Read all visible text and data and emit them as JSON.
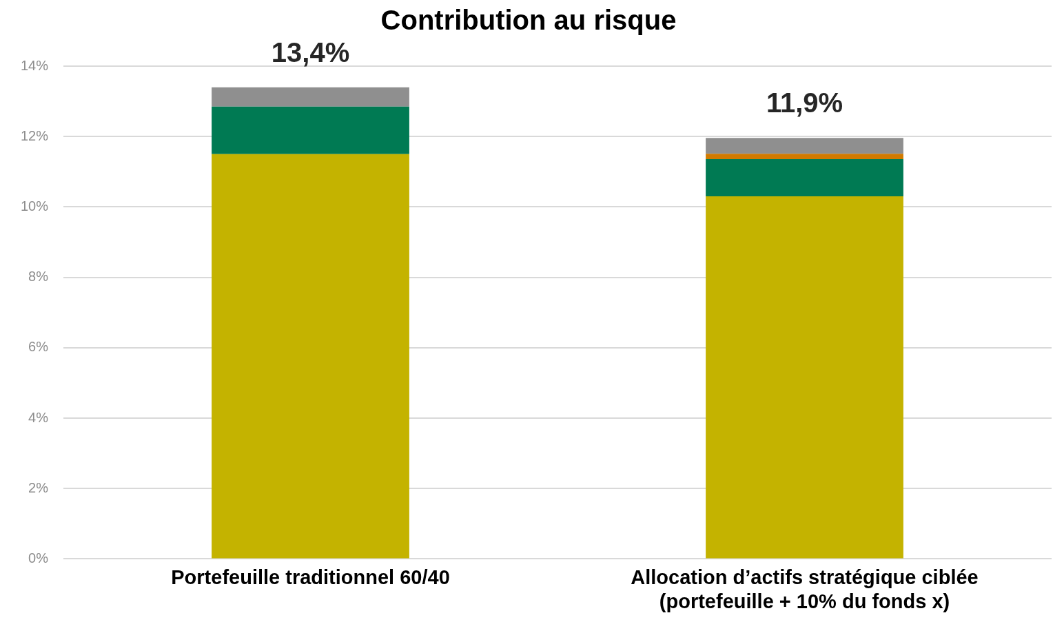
{
  "chart_data": {
    "type": "bar",
    "title": "Contribution au risque",
    "categories": [
      "Portefeuille traditionnel 60/40",
      "Allocation d’actifs stratégique ciblée\n(portefeuille + 10% du fonds x)"
    ],
    "stacked": true,
    "series": [
      {
        "color": "#c4b300",
        "values": [
          11.5,
          10.3
        ]
      },
      {
        "color": "#007a53",
        "values": [
          1.35,
          1.06
        ]
      },
      {
        "color": "#d17a00",
        "values": [
          null,
          0.15
        ]
      },
      {
        "color": "#8f8f8f",
        "values": [
          0.55,
          0.45
        ]
      }
    ],
    "ylim": [
      0,
      14
    ],
    "yticks": [
      {
        "value": 0,
        "label": "0%"
      },
      {
        "value": 2,
        "label": "2%"
      },
      {
        "value": 4,
        "label": "4%"
      },
      {
        "value": 6,
        "label": "6%"
      },
      {
        "value": 8,
        "label": "8%"
      },
      {
        "value": 10,
        "label": "10%"
      },
      {
        "value": 12,
        "label": "12%"
      },
      {
        "value": 14,
        "label": "14%"
      }
    ],
    "grid": "y",
    "legend": false,
    "totals": [
      "13,4%",
      "11,9%"
    ]
  }
}
